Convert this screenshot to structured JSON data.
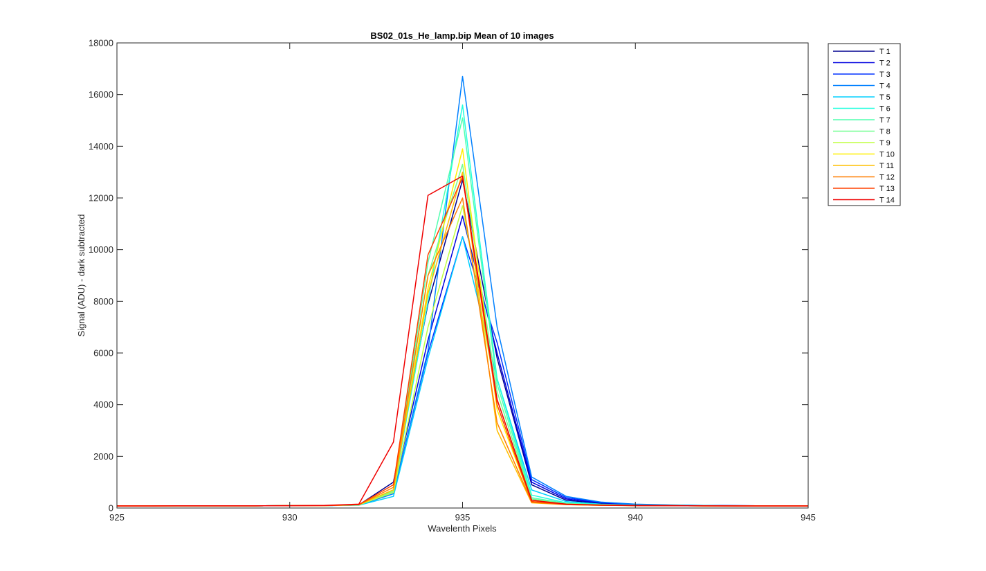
{
  "chart_data": {
    "type": "line",
    "title": "BS02_01s_He_lamp.bip  Mean of 10 images",
    "xlabel": "Wavelenth Pixels",
    "ylabel": "Signal (ADU) - dark subtracted",
    "xlim": [
      925,
      945
    ],
    "ylim": [
      0,
      18000
    ],
    "xticks": [
      925,
      930,
      935,
      940,
      945
    ],
    "yticks": [
      0,
      2000,
      4000,
      6000,
      8000,
      10000,
      12000,
      14000,
      16000,
      18000
    ],
    "grid": false,
    "legend_position": "outside-top-right",
    "x": [
      925,
      926,
      927,
      928,
      929,
      930,
      931,
      932,
      933,
      934,
      935,
      936,
      937,
      938,
      939,
      940,
      941,
      942,
      943,
      944,
      945
    ],
    "series": [
      {
        "name": "T 1",
        "color": "#00008F",
        "values": [
          80,
          80,
          85,
          85,
          85,
          90,
          95,
          120,
          1000,
          7900,
          12700,
          5800,
          900,
          300,
          180,
          120,
          100,
          90,
          85,
          80,
          80
        ]
      },
      {
        "name": "T 2",
        "color": "#0000DF",
        "values": [
          80,
          80,
          85,
          85,
          85,
          90,
          95,
          120,
          700,
          6500,
          11300,
          6000,
          1000,
          350,
          200,
          130,
          110,
          95,
          90,
          85,
          85
        ]
      },
      {
        "name": "T 3",
        "color": "#0030FF",
        "values": [
          80,
          80,
          85,
          85,
          85,
          90,
          95,
          120,
          600,
          6000,
          10500,
          6400,
          1100,
          400,
          220,
          140,
          115,
          100,
          90,
          85,
          85
        ]
      },
      {
        "name": "T 4",
        "color": "#0080FF",
        "values": [
          80,
          80,
          85,
          85,
          85,
          90,
          95,
          110,
          550,
          6100,
          16700,
          7000,
          1200,
          450,
          230,
          150,
          120,
          100,
          90,
          85,
          85
        ]
      },
      {
        "name": "T 5",
        "color": "#00CFFF",
        "values": [
          80,
          80,
          85,
          85,
          85,
          90,
          95,
          110,
          450,
          5800,
          10500,
          5000,
          700,
          250,
          150,
          110,
          95,
          90,
          85,
          80,
          80
        ]
      },
      {
        "name": "T 6",
        "color": "#20FFDF",
        "values": [
          80,
          80,
          85,
          85,
          85,
          90,
          95,
          120,
          650,
          8000,
          15600,
          5000,
          500,
          200,
          140,
          105,
          95,
          90,
          85,
          80,
          80
        ]
      },
      {
        "name": "T 7",
        "color": "#50FFAF",
        "values": [
          80,
          80,
          85,
          85,
          85,
          90,
          95,
          120,
          700,
          9500,
          15100,
          4800,
          400,
          180,
          130,
          100,
          95,
          90,
          85,
          80,
          80
        ]
      },
      {
        "name": "T 8",
        "color": "#70FF8F",
        "values": [
          80,
          80,
          85,
          85,
          85,
          90,
          95,
          120,
          650,
          9000,
          13300,
          4500,
          350,
          160,
          120,
          100,
          90,
          85,
          85,
          80,
          80
        ]
      },
      {
        "name": "T 9",
        "color": "#BFFF40",
        "values": [
          80,
          80,
          85,
          85,
          85,
          90,
          95,
          120,
          600,
          7000,
          11700,
          4200,
          300,
          150,
          115,
          95,
          90,
          85,
          80,
          80,
          80
        ]
      },
      {
        "name": "T 10",
        "color": "#FFEF00",
        "values": [
          80,
          80,
          85,
          85,
          85,
          90,
          95,
          130,
          700,
          8500,
          13900,
          3800,
          250,
          140,
          110,
          95,
          90,
          85,
          80,
          80,
          80
        ]
      },
      {
        "name": "T 11",
        "color": "#FFBF00",
        "values": [
          80,
          80,
          85,
          85,
          85,
          90,
          95,
          130,
          700,
          8300,
          13000,
          3000,
          200,
          130,
          105,
          95,
          90,
          85,
          80,
          80,
          80
        ]
      },
      {
        "name": "T 12",
        "color": "#FF7F00",
        "values": [
          80,
          80,
          85,
          85,
          85,
          90,
          95,
          130,
          800,
          9000,
          12000,
          3300,
          220,
          130,
          105,
          95,
          90,
          85,
          80,
          80,
          80
        ]
      },
      {
        "name": "T 13",
        "color": "#FF4000",
        "values": [
          80,
          80,
          85,
          85,
          85,
          90,
          95,
          130,
          900,
          9800,
          12800,
          4000,
          250,
          140,
          110,
          95,
          90,
          85,
          80,
          80,
          80
        ]
      },
      {
        "name": "T 14",
        "color": "#EF0000",
        "values": [
          80,
          80,
          85,
          85,
          85,
          90,
          100,
          150,
          2550,
          12100,
          12850,
          4200,
          300,
          150,
          115,
          95,
          90,
          85,
          80,
          80,
          80
        ]
      }
    ]
  }
}
